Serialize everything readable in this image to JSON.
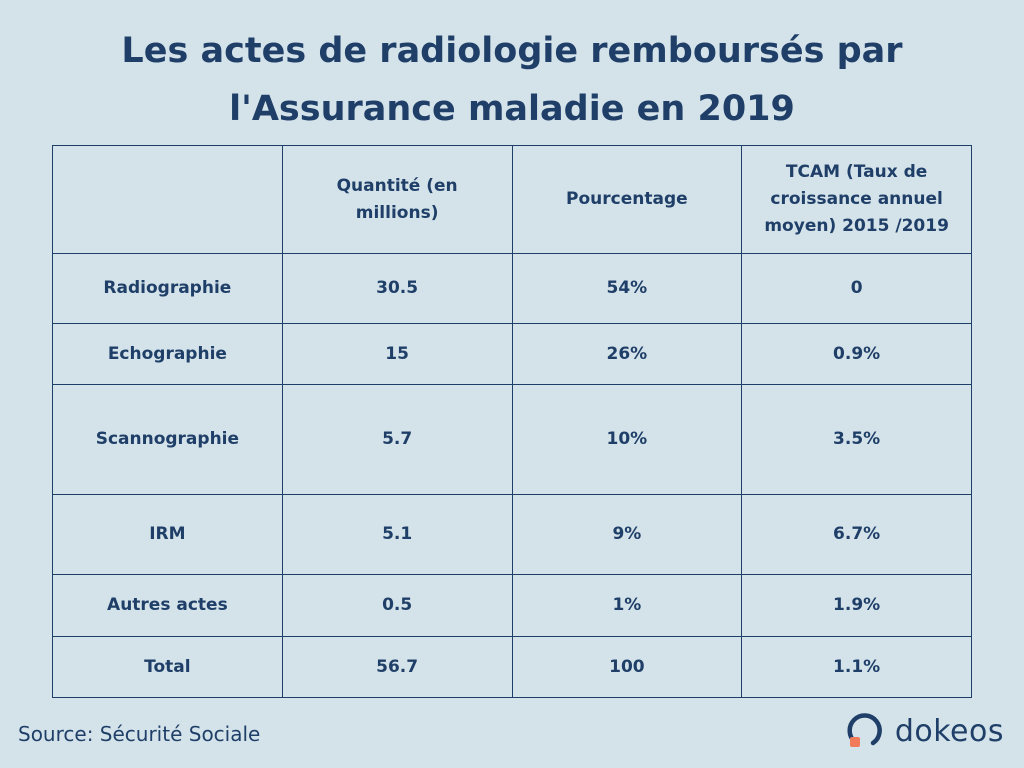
{
  "title_line1": "Les actes de radiologie remboursés par",
  "title_line2": "l'Assurance maladie en 2019",
  "chart_data": {
    "type": "table",
    "title": "Les actes de radiologie remboursés par l'Assurance maladie en 2019",
    "columns": [
      "",
      "Quantité (en millions)",
      "Pourcentage",
      "TCAM (Taux de croissance annuel moyen) 2015 /2019"
    ],
    "rows": [
      [
        "Radiographie",
        "30.5",
        "54%",
        "0"
      ],
      [
        "Echographie",
        "15",
        "26%",
        "0.9%"
      ],
      [
        "Scannographie",
        "5.7",
        "10%",
        "3.5%"
      ],
      [
        "IRM",
        "5.1",
        "9%",
        "6.7%"
      ],
      [
        "Autres actes",
        "0.5",
        "1%",
        "1.9%"
      ],
      [
        "Total",
        "56.7",
        "100",
        "1.1%"
      ]
    ]
  },
  "source": "Source: Sécurité Sociale",
  "logo": {
    "text": "dokeos",
    "colors": {
      "ring": "#1f3f68",
      "square": "#f07a5a"
    }
  }
}
